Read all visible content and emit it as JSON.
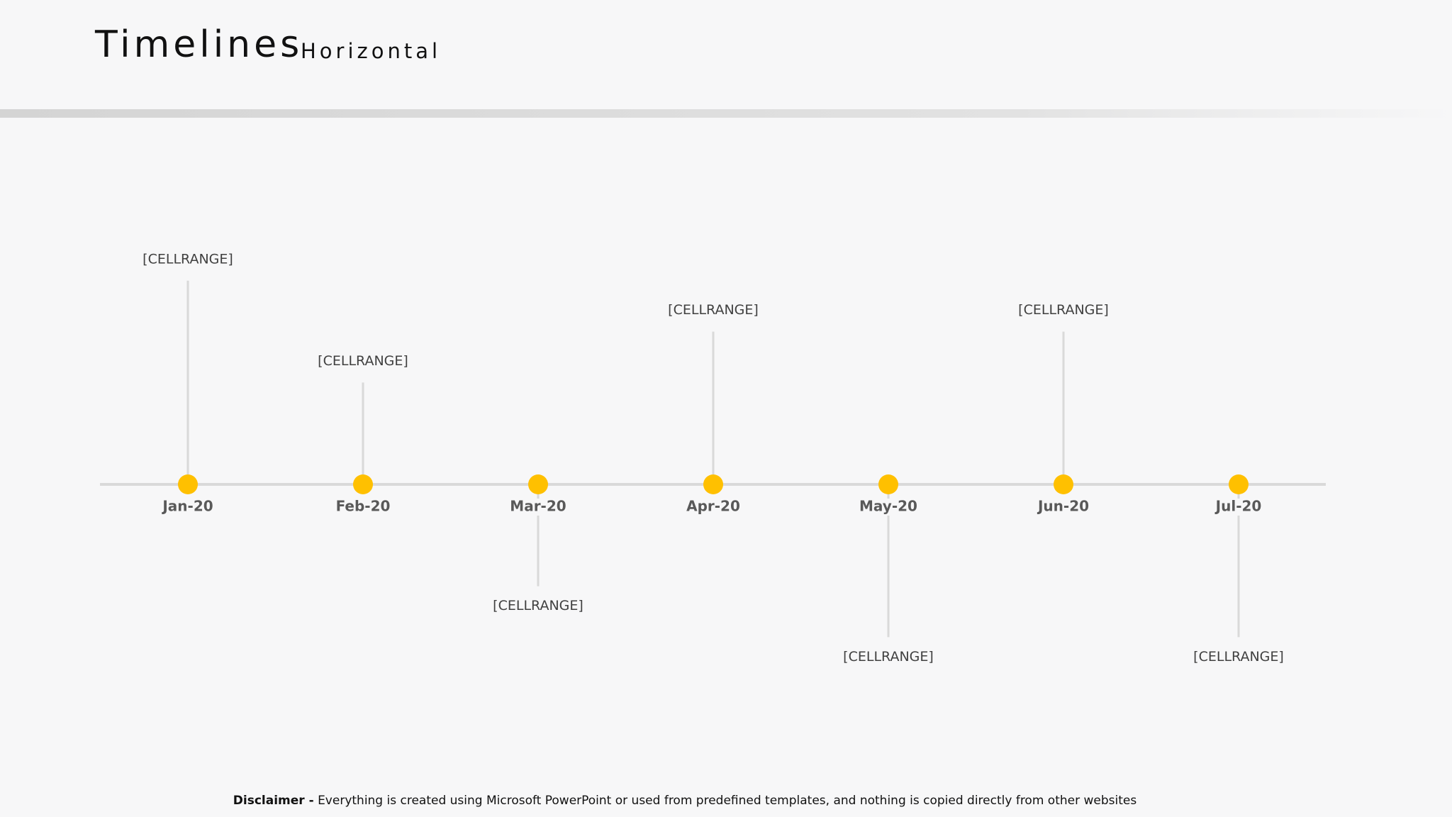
{
  "chart_data": {
    "type": "timeline",
    "title": "Timelines",
    "subtitle": "Horizontal",
    "categories": [
      "Jan-20",
      "Feb-20",
      "Mar-20",
      "Apr-20",
      "May-20",
      "Jun-20",
      "Jul-20"
    ],
    "values": [
      4,
      2,
      -2,
      3,
      -3,
      3,
      -3
    ],
    "annotations": [
      "[CELLRANGE]",
      "[CELLRANGE]",
      "[CELLRANGE]",
      "[CELLRANGE]",
      "[CELLRANGE]",
      "[CELLRANGE]",
      "[CELLRANGE]"
    ],
    "ylim": [
      -5,
      5
    ],
    "color": "#ffc000",
    "stem_color": "#d9d9d9",
    "disclaimer": {
      "label": "Disclaimer -",
      "text": "Everything is created using Microsoft PowerPoint or used from predefined templates, and nothing is copied directly from other websites"
    }
  }
}
